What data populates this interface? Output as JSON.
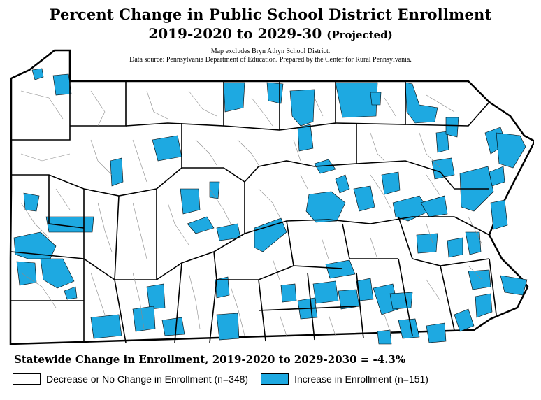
{
  "title": {
    "line1": "Percent Change in Public School District Enrollment",
    "line2": "2019-2020 to 2029-30",
    "line2_sub": "(Projected)",
    "note1": "Map excludes Bryn Athyn School District.",
    "note2": "Data source: Pennsylvania Department of Education. Prepared by the Center for Rural Pennsylvania."
  },
  "statewide": "Statewide Change in Enrollment, 2019-2020 to 2029-2030 = -4.3%",
  "legend": [
    {
      "label": "Decrease or No Change in Enrollment (n=348)",
      "color": "#ffffff"
    },
    {
      "label": "Increase in Enrollment (n=151)",
      "color": "#1ea9e1"
    }
  ],
  "colors": {
    "increase": "#1ea9e1",
    "decrease": "#ffffff",
    "border": "#000000",
    "district_line": "#8a8a8a"
  }
}
